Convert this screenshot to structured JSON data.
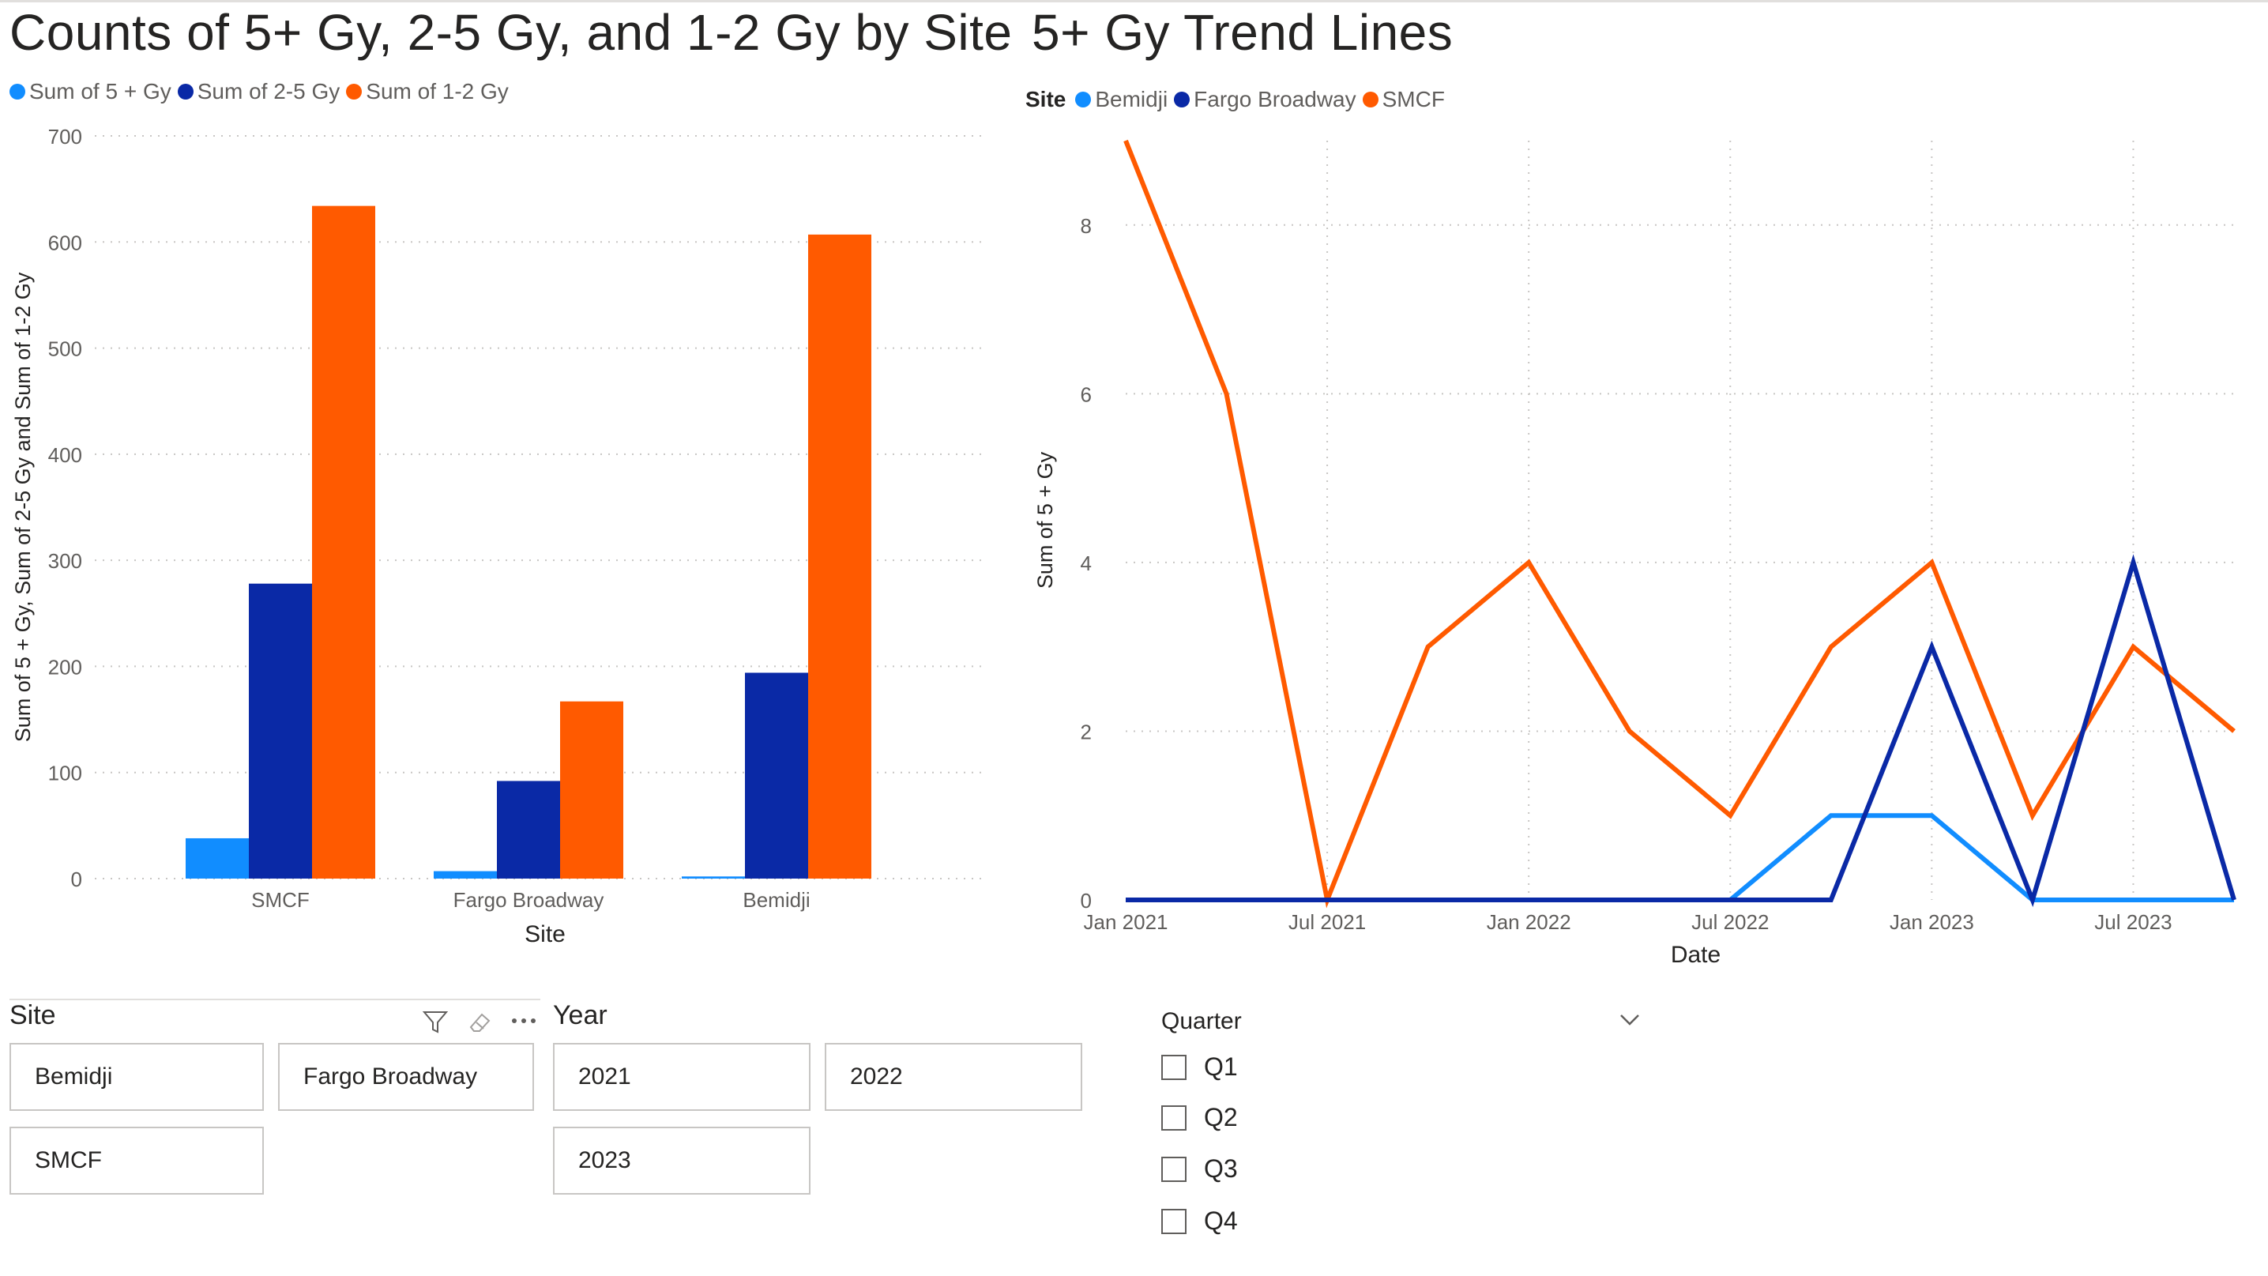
{
  "colors": {
    "blue_light": "#118DFF",
    "blue_dark": "#0A29A6",
    "orange": "#FF5A00",
    "grid": "#c8c6c4"
  },
  "left_chart": {
    "title": "Counts of 5+ Gy, 2-5 Gy, and 1-2 Gy by Site",
    "legend": [
      "Sum of 5 + Gy",
      "Sum of 2-5 Gy",
      "Sum of 1-2 Gy"
    ]
  },
  "right_chart": {
    "title": "5+ Gy Trend Lines",
    "legend_title": "Site",
    "legend": [
      "Bemidji",
      "Fargo Broadway",
      "SMCF"
    ]
  },
  "chart_data": [
    {
      "type": "bar",
      "title": "Counts of 5+ Gy, 2-5 Gy, and 1-2 Gy by Site",
      "xlabel": "Site",
      "ylabel": "Sum of 5 + Gy, Sum of 2-5 Gy and Sum of 1-2 Gy",
      "categories": [
        "SMCF",
        "Fargo Broadway",
        "Bemidji"
      ],
      "series": [
        {
          "name": "Sum of 5 + Gy",
          "values": [
            38,
            7,
            2
          ]
        },
        {
          "name": "Sum of 2-5 Gy",
          "values": [
            278,
            92,
            194
          ]
        },
        {
          "name": "Sum of 1-2 Gy",
          "values": [
            634,
            167,
            607
          ]
        }
      ],
      "ylim": [
        0,
        700
      ],
      "yticks": [
        0,
        100,
        200,
        300,
        400,
        500,
        600,
        700
      ],
      "grid": true,
      "legend": "top-left"
    },
    {
      "type": "line",
      "title": "5+ Gy Trend Lines",
      "xlabel": "Date",
      "ylabel": "Sum of 5 + Gy",
      "x": [
        "2021-01",
        "2021-04",
        "2021-07",
        "2021-10",
        "2022-01",
        "2022-04",
        "2022-07",
        "2022-10",
        "2023-01",
        "2023-04",
        "2023-07",
        "2023-10"
      ],
      "xticks": [
        "Jan 2021",
        "Jul 2021",
        "Jan 2022",
        "Jul 2022",
        "Jan 2023",
        "Jul 2023"
      ],
      "series": [
        {
          "name": "Bemidji",
          "values": [
            0,
            0,
            0,
            0,
            0,
            0,
            0,
            1,
            1,
            0,
            0,
            0
          ]
        },
        {
          "name": "Fargo Broadway",
          "values": [
            0,
            0,
            0,
            0,
            0,
            0,
            0,
            0,
            3,
            0,
            4,
            0
          ]
        },
        {
          "name": "SMCF",
          "values": [
            9,
            6,
            0,
            3,
            4,
            2,
            1,
            3,
            4,
            1,
            3,
            2
          ]
        }
      ],
      "ylim": [
        0,
        9
      ],
      "yticks": [
        0,
        2,
        4,
        6,
        8
      ],
      "grid": true,
      "legend": "top-left",
      "legend_title": "Site"
    }
  ],
  "site_slicer": {
    "title": "Site",
    "options": [
      "Bemidji",
      "Fargo Broadway",
      "SMCF"
    ]
  },
  "year_slicer": {
    "title": "Year",
    "options": [
      "2021",
      "2022",
      "2023"
    ]
  },
  "quarter_slicer": {
    "title": "Quarter",
    "options": [
      "Q1",
      "Q2",
      "Q3",
      "Q4"
    ]
  }
}
